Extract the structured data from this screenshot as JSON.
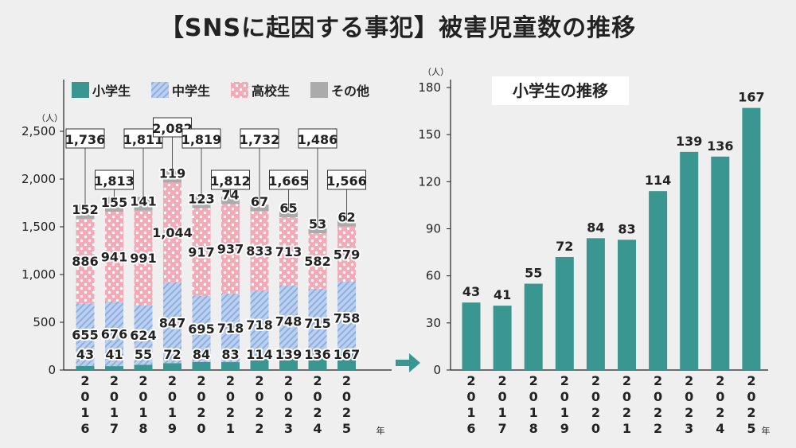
{
  "title": "【SNSに起因する事犯】被害児童数の推移",
  "colors": {
    "elem": "#3a9690",
    "middle": "#a9c3e6",
    "high": "#f4a7b4",
    "other": "#ababab",
    "arrow": "#3a9690"
  },
  "chart_data": [
    {
      "type": "bar",
      "stacked": true,
      "unit_label": "（人）",
      "year_suffix": "年",
      "categories": [
        "2016",
        "2017",
        "2018",
        "2019",
        "2020",
        "2021",
        "2022",
        "2023",
        "2024",
        "2025"
      ],
      "year_chars": [
        [
          "2",
          "0",
          "1",
          "6"
        ],
        [
          "2",
          "0",
          "1",
          "7"
        ],
        [
          "2",
          "0",
          "1",
          "8"
        ],
        [
          "2",
          "0",
          "1",
          "9"
        ],
        [
          "2",
          "0",
          "2",
          "0"
        ],
        [
          "2",
          "0",
          "2",
          "1"
        ],
        [
          "2",
          "0",
          "2",
          "2"
        ],
        [
          "2",
          "0",
          "2",
          "3"
        ],
        [
          "2",
          "0",
          "2",
          "4"
        ],
        [
          "2",
          "0",
          "2",
          "5"
        ]
      ],
      "series": [
        {
          "name": "小学生",
          "values": [
            43,
            41,
            55,
            72,
            84,
            83,
            114,
            139,
            136,
            167
          ]
        },
        {
          "name": "中学生",
          "values": [
            655,
            676,
            624,
            847,
            695,
            718,
            718,
            748,
            715,
            758
          ]
        },
        {
          "name": "高校生",
          "values": [
            886,
            941,
            991,
            1044,
            917,
            937,
            833,
            713,
            582,
            579
          ]
        },
        {
          "name": "その他",
          "values": [
            152,
            155,
            141,
            119,
            123,
            74,
            67,
            65,
            53,
            62
          ]
        }
      ],
      "value_labels": [
        [
          "43",
          "41",
          "55",
          "72",
          "84",
          "83",
          "114",
          "139",
          "136",
          "167"
        ],
        [
          "655",
          "676",
          "624",
          "847",
          "695",
          "718",
          "718",
          "748",
          "715",
          "758"
        ],
        [
          "886",
          "941",
          "991",
          "1,044",
          "917",
          "937",
          "833",
          "713",
          "582",
          "579"
        ],
        [
          "152",
          "155",
          "141",
          "119",
          "123",
          "74",
          "67",
          "65",
          "53",
          "62"
        ]
      ],
      "totals": [
        "1,736",
        "1,813",
        "1,811",
        "2,082",
        "1,819",
        "1,812",
        "1,732",
        "1,665",
        "1,486",
        "1,566"
      ],
      "ylim": [
        0,
        2500
      ],
      "yticks": [
        "0",
        "500",
        "1,000",
        "1,500",
        "2,000",
        "2,500"
      ],
      "grid": false,
      "legend": "top"
    },
    {
      "type": "bar",
      "subtitle": "小学生の推移",
      "unit_label": "（人）",
      "year_suffix": "年",
      "categories": [
        "2016",
        "2017",
        "2018",
        "2019",
        "2020",
        "2021",
        "2022",
        "2023",
        "2024",
        "2025"
      ],
      "values": [
        43,
        41,
        55,
        72,
        84,
        83,
        114,
        139,
        136,
        167
      ],
      "ylim": [
        0,
        180
      ],
      "yticks": [
        "0",
        "30",
        "60",
        "90",
        "120",
        "150",
        "180"
      ],
      "grid": false
    }
  ]
}
